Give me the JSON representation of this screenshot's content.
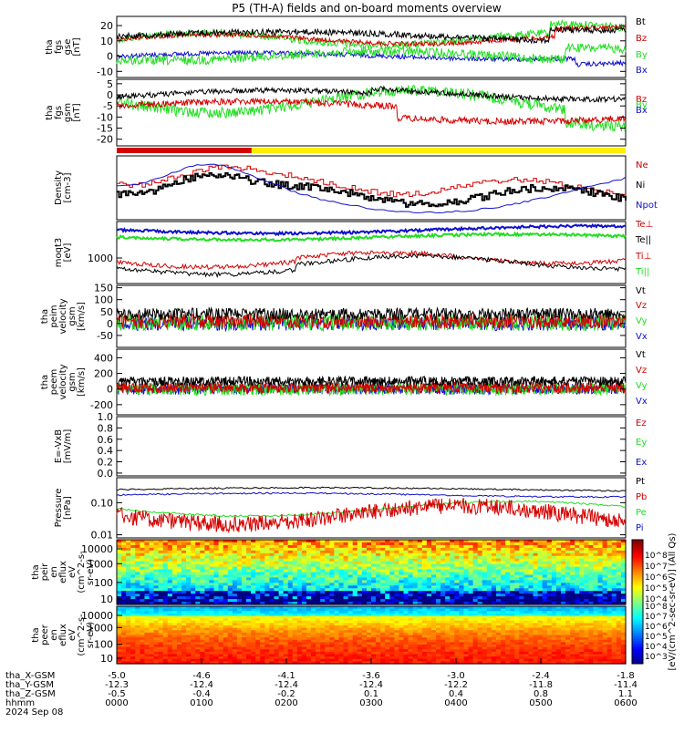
{
  "title": "P5 (TH-A) fields and on-board moments overview",
  "date": "2024 Sep 08",
  "colors": {
    "black": "#000000",
    "red": "#d40000",
    "green": "#22dd22",
    "blue": "#1010cc",
    "yellow": "#ffee00"
  },
  "chart_data": [
    {
      "id": "fgs_gse",
      "type": "line",
      "ylabel": [
        "tha",
        "fgs",
        "gse",
        "[nT]"
      ],
      "ylim": [
        -14,
        26
      ],
      "yticks": [
        20,
        10,
        0,
        -10
      ],
      "series": [
        {
          "name": "Bt",
          "color": "black"
        },
        {
          "name": "Bz",
          "color": "red"
        },
        {
          "name": "By",
          "color": "green"
        },
        {
          "name": "Bx",
          "color": "blue"
        }
      ]
    },
    {
      "id": "fgs_gsm",
      "type": "line",
      "ylabel": [
        "tha",
        "fgs",
        "gsm",
        "[nT]"
      ],
      "ylim": [
        -23,
        7
      ],
      "yticks": [
        5,
        0,
        -5,
        -10,
        -15,
        -20
      ],
      "series": [
        {
          "name": "Bz",
          "color": "red"
        },
        {
          "name": "By",
          "color": "green"
        },
        {
          "name": "Bx",
          "color": "blue"
        }
      ]
    },
    {
      "id": "mode_bar",
      "type": "bar",
      "segments": [
        {
          "from": 0,
          "to": 0.265,
          "color": "red"
        },
        {
          "from": 0.265,
          "to": 1,
          "color": "yellow"
        }
      ]
    },
    {
      "id": "density",
      "type": "line",
      "ylabel": [
        "Density",
        "[cm-3]"
      ],
      "series": [
        {
          "name": "Ne",
          "color": "red"
        },
        {
          "name": "Ni",
          "color": "black"
        },
        {
          "name": "Npot",
          "color": "blue"
        }
      ]
    },
    {
      "id": "temperature",
      "type": "line",
      "ylabel": [
        "moqt3",
        "[eV]"
      ],
      "yticks": [
        1000
      ],
      "series": [
        {
          "name": "Te⊥",
          "color": "red"
        },
        {
          "name": "Te||",
          "color": "black"
        },
        {
          "name": "Ti⊥",
          "color": "red"
        },
        {
          "name": "Ti||",
          "color": "green"
        }
      ]
    },
    {
      "id": "ion_velocity",
      "type": "line",
      "ylabel": [
        "tha",
        "peim",
        "velocity",
        "gsm",
        "[km/s]"
      ],
      "ylim": [
        -100,
        160
      ],
      "yticks": [
        150,
        100,
        50,
        0,
        -50
      ],
      "series": [
        {
          "name": "Vt",
          "color": "black"
        },
        {
          "name": "Vz",
          "color": "red"
        },
        {
          "name": "Vy",
          "color": "green"
        },
        {
          "name": "Vx",
          "color": "blue"
        }
      ]
    },
    {
      "id": "electron_velocity",
      "type": "line",
      "ylabel": [
        "tha",
        "peem",
        "velocity",
        "gsm",
        "[km/s]"
      ],
      "ylim": [
        -330,
        510
      ],
      "yticks": [
        400,
        200,
        0,
        -200
      ],
      "series": [
        {
          "name": "Vt",
          "color": "black"
        },
        {
          "name": "Vz",
          "color": "red"
        },
        {
          "name": "Vy",
          "color": "green"
        },
        {
          "name": "Vx",
          "color": "blue"
        }
      ]
    },
    {
      "id": "efield",
      "type": "line",
      "ylabel": [
        "E=-VxB",
        "[mV/m]"
      ],
      "ylim": [
        -0.05,
        1.0
      ],
      "yticks": [
        1.0,
        0.8,
        0.6,
        0.4,
        0.2,
        0.0
      ],
      "series": [
        {
          "name": "Ez",
          "color": "red"
        },
        {
          "name": "Ey",
          "color": "green"
        },
        {
          "name": "Ex",
          "color": "blue"
        }
      ]
    },
    {
      "id": "pressure",
      "type": "line",
      "scale": "log",
      "ylabel": [
        "Pressure",
        "[nPa]"
      ],
      "ylim": [
        0.008,
        0.6
      ],
      "yticks": [
        0.1,
        0.01
      ],
      "series": [
        {
          "name": "Pt",
          "color": "black"
        },
        {
          "name": "Pb",
          "color": "red"
        },
        {
          "name": "Pe",
          "color": "green"
        },
        {
          "name": "Pi",
          "color": "blue"
        }
      ]
    },
    {
      "id": "ion_spectrogram",
      "type": "heatmap",
      "scale": "log",
      "ylabel": [
        "tha",
        "peir",
        "en",
        "eflux",
        "eV",
        "(cm^2-s-",
        "sr-eV)"
      ],
      "yticks": [
        10000,
        1000,
        100,
        10
      ]
    },
    {
      "id": "electron_spectrogram",
      "type": "heatmap",
      "scale": "log",
      "ylabel": [
        "tha",
        "peer",
        "en",
        "eflux",
        "eV",
        "(cm^2-s-",
        "sr-eV)"
      ],
      "yticks": [
        10000,
        1000,
        100,
        10
      ]
    }
  ],
  "colorbar": {
    "label": "[eV/(cm^2-sec-sr-eV)] (All Qs)",
    "upper_ticks": [
      "10^8",
      "10^7",
      "10^6",
      "10^5",
      "10^4"
    ],
    "lower_ticks": [
      "10^8",
      "10^7",
      "10^6",
      "10^5",
      "10^4",
      "10^3"
    ]
  },
  "xaxis": {
    "rows": [
      {
        "label": "tha_X-GSM",
        "values": [
          "-5.0",
          "-4.6",
          "-4.1",
          "-3.6",
          "-3.0",
          "-2.4",
          "-1.8"
        ]
      },
      {
        "label": "tha_Y-GSM",
        "values": [
          "-12.3",
          "-12.4",
          "-12.4",
          "-12.4",
          "-12.2",
          "-11.8",
          "-11.4"
        ]
      },
      {
        "label": "tha_Z-GSM",
        "values": [
          "-0.5",
          "-0.4",
          "-0.2",
          "0.1",
          "0.4",
          "0.8",
          "1.1"
        ]
      },
      {
        "label": "hhmm",
        "values": [
          "0000",
          "0100",
          "0200",
          "0300",
          "0400",
          "0500",
          "0600"
        ]
      }
    ]
  }
}
